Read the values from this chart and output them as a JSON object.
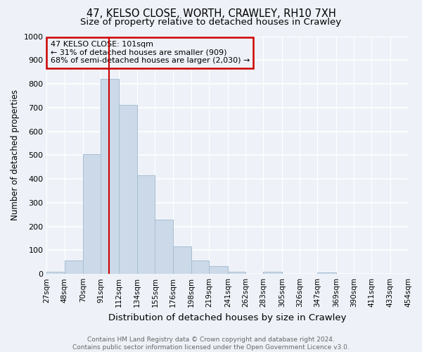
{
  "title": "47, KELSO CLOSE, WORTH, CRAWLEY, RH10 7XH",
  "subtitle": "Size of property relative to detached houses in Crawley",
  "xlabel": "Distribution of detached houses by size in Crawley",
  "ylabel": "Number of detached properties",
  "bin_edges": [
    27,
    48,
    70,
    91,
    112,
    134,
    155,
    176,
    198,
    219,
    241,
    262,
    283,
    305,
    326,
    347,
    369,
    390,
    411,
    433,
    454
  ],
  "bar_heights": [
    8,
    57,
    505,
    820,
    710,
    415,
    230,
    115,
    57,
    33,
    10,
    0,
    10,
    0,
    0,
    5,
    0,
    0,
    0,
    0
  ],
  "bar_color": "#ccd9e8",
  "bar_edgecolor": "#a8bfd4",
  "vline_x": 101,
  "vline_color": "#cc0000",
  "annotation_text": "47 KELSO CLOSE: 101sqm\n← 31% of detached houses are smaller (909)\n68% of semi-detached houses are larger (2,030) →",
  "annotation_box_edgecolor": "#cc0000",
  "ylim": [
    0,
    1000
  ],
  "yticks": [
    0,
    100,
    200,
    300,
    400,
    500,
    600,
    700,
    800,
    900,
    1000
  ],
  "background_color": "#eef2f8",
  "grid_color": "#ffffff",
  "footer_text": "Contains HM Land Registry data © Crown copyright and database right 2024.\nContains public sector information licensed under the Open Government Licence v3.0.",
  "title_fontsize": 10.5,
  "subtitle_fontsize": 9.5,
  "tick_label_fontsize": 7.5,
  "ylabel_fontsize": 8.5,
  "xlabel_fontsize": 9.5,
  "annotation_fontsize": 8.0,
  "footer_fontsize": 6.5
}
